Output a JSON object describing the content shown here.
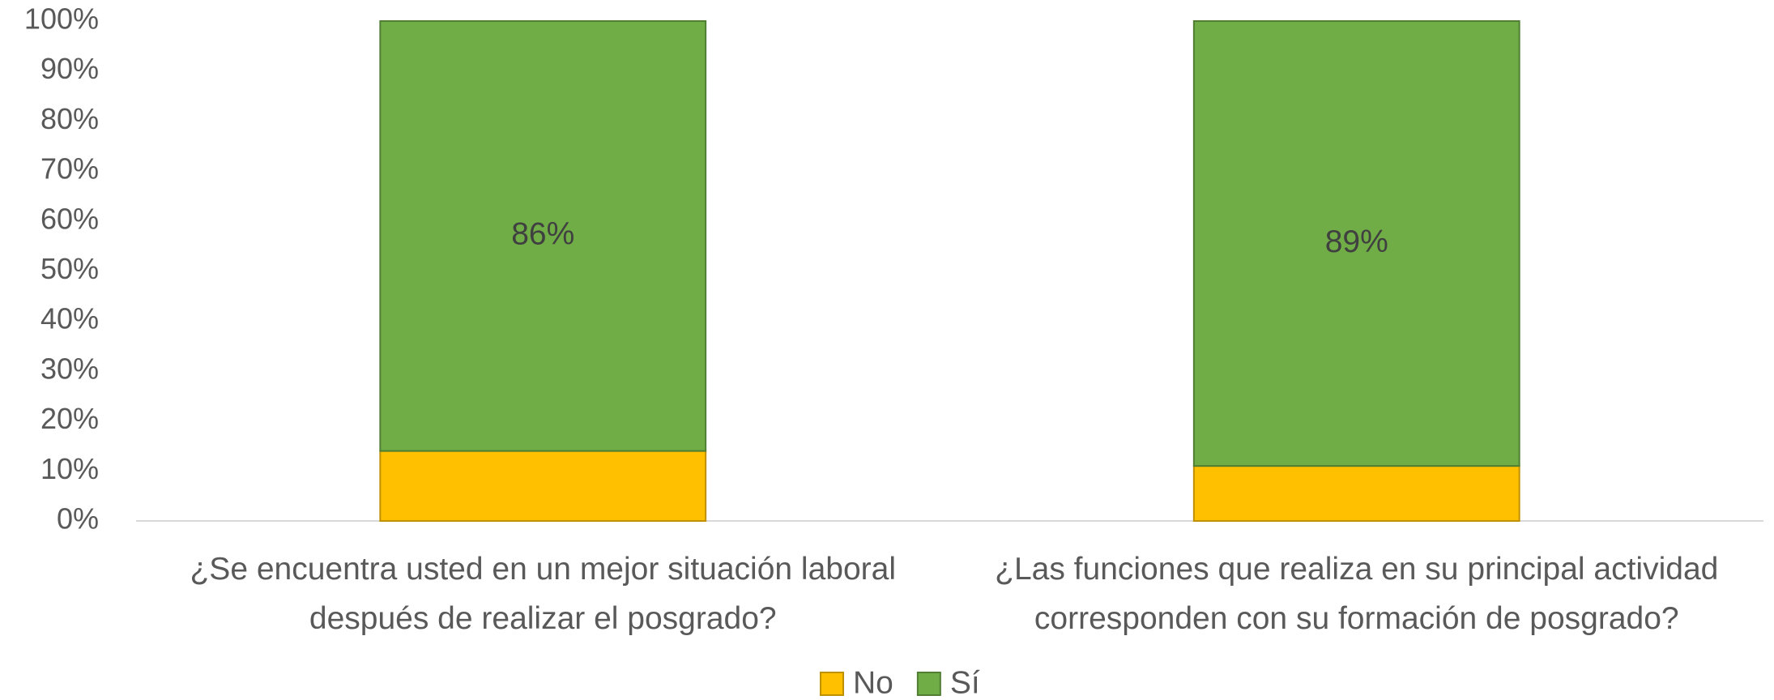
{
  "chart_data": {
    "type": "stacked_bar",
    "categories": [
      "¿Se encuentra usted en un mejor situación laboral\ndespués de realizar el posgrado?",
      "¿Las funciones que realiza en su principal actividad\ncorresponden con su formación de posgrado?"
    ],
    "series": [
      {
        "name": "No",
        "color": "#ffc000",
        "values": [
          14,
          11
        ]
      },
      {
        "name": "Sí",
        "color": "#70ad47",
        "values": [
          86,
          89
        ],
        "value_labels": [
          "86%",
          "89%"
        ]
      }
    ],
    "ylim": [
      0,
      100
    ],
    "yticks": [
      {
        "value": 0,
        "label": "0%"
      },
      {
        "value": 10,
        "label": "10%"
      },
      {
        "value": 20,
        "label": "20%"
      },
      {
        "value": 30,
        "label": "30%"
      },
      {
        "value": 40,
        "label": "40%"
      },
      {
        "value": 50,
        "label": "50%"
      },
      {
        "value": 60,
        "label": "60%"
      },
      {
        "value": 70,
        "label": "70%"
      },
      {
        "value": 80,
        "label": "80%"
      },
      {
        "value": 90,
        "label": "90%"
      },
      {
        "value": 100,
        "label": "100%"
      }
    ],
    "legend": "bottom"
  }
}
